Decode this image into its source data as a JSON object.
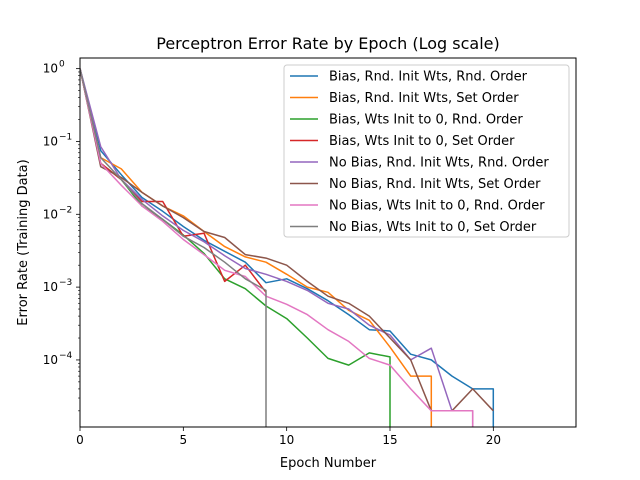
{
  "chart_data": {
    "type": "line",
    "title": "Perceptron Error Rate by Epoch (Log scale)",
    "xlabel": "Epoch Number",
    "ylabel": "Error Rate (Training Data)",
    "xlim": [
      0,
      24
    ],
    "ylim": [
      1.2e-05,
      1.4
    ],
    "yscale": "log",
    "x_ticks": [
      0,
      5,
      10,
      15,
      20
    ],
    "y_ticks": [
      {
        "value": 1,
        "label": "10^0"
      },
      {
        "value": 0.1,
        "label": "10^-1"
      },
      {
        "value": 0.01,
        "label": "10^-2"
      },
      {
        "value": 0.001,
        "label": "10^-3"
      },
      {
        "value": 0.0001,
        "label": "10^-4"
      }
    ],
    "grid": false,
    "legend_position": "top-right",
    "series": [
      {
        "name": "Bias, Rnd. Init Wts, Rnd. Order",
        "color": "#1f77b4",
        "x": [
          0,
          1,
          2,
          3,
          4,
          5,
          6,
          7,
          8,
          9,
          10,
          11,
          12,
          13,
          14,
          15,
          16,
          17,
          18,
          19,
          20,
          20
        ],
        "y": [
          1.0,
          0.075,
          0.035,
          0.017,
          0.011,
          0.0068,
          0.0044,
          0.0031,
          0.0022,
          0.00115,
          0.0013,
          0.00095,
          0.00065,
          0.00042,
          0.00026,
          0.00025,
          0.00012,
          0.0001,
          6e-05,
          4e-05,
          4e-05,
          null
        ]
      },
      {
        "name": "Bias, Rnd. Init Wts, Set Order",
        "color": "#ff7f0e",
        "x": [
          0,
          1,
          2,
          3,
          4,
          5,
          6,
          7,
          8,
          9,
          10,
          11,
          12,
          13,
          14,
          15,
          16,
          17,
          17
        ],
        "y": [
          1.0,
          0.06,
          0.042,
          0.02,
          0.013,
          0.0095,
          0.0058,
          0.0036,
          0.0026,
          0.0022,
          0.0015,
          0.001,
          0.00085,
          0.00048,
          0.00035,
          0.00015,
          6e-05,
          6e-05,
          null
        ]
      },
      {
        "name": "Bias, Wts Init to 0, Rnd. Order",
        "color": "#2ca02c",
        "x": [
          0,
          1,
          2,
          3,
          4,
          5,
          6,
          7,
          8,
          9,
          10,
          11,
          12,
          13,
          14,
          15,
          15
        ],
        "y": [
          1.0,
          0.05,
          0.03,
          0.013,
          0.0085,
          0.0052,
          0.0029,
          0.0013,
          0.00095,
          0.00055,
          0.00037,
          0.0002,
          0.000105,
          8.5e-05,
          0.000125,
          0.00011,
          null
        ]
      },
      {
        "name": "Bias, Wts Init to 0, Set Order",
        "color": "#d62728",
        "x": [
          0,
          1,
          2,
          3,
          4,
          5,
          6,
          7,
          8,
          9
        ],
        "y": [
          1.0,
          0.05,
          0.03,
          0.015,
          0.015,
          0.005,
          0.0055,
          0.0012,
          0.002,
          0.00085
        ]
      },
      {
        "name": "No Bias, Rnd. Init Wts, Rnd. Order",
        "color": "#9467bd",
        "x": [
          0,
          1,
          2,
          3,
          4,
          5,
          6,
          7,
          8,
          9,
          10,
          11,
          12,
          13,
          14,
          15,
          16,
          17,
          18,
          19,
          19
        ],
        "y": [
          1.0,
          0.085,
          0.03,
          0.016,
          0.0095,
          0.006,
          0.0042,
          0.0027,
          0.0018,
          0.0015,
          0.0012,
          0.0009,
          0.0006,
          0.0005,
          0.0003,
          0.00022,
          0.0001,
          0.000145,
          2e-05,
          2e-05,
          null
        ]
      },
      {
        "name": "No Bias, Rnd. Init Wts, Set Order",
        "color": "#8c564b",
        "x": [
          0,
          1,
          2,
          3,
          4,
          5,
          6,
          7,
          8,
          9,
          10,
          11,
          12,
          13,
          14,
          15,
          16,
          17,
          18,
          19,
          20
        ],
        "y": [
          1.0,
          0.045,
          0.032,
          0.02,
          0.013,
          0.009,
          0.0058,
          0.0048,
          0.0028,
          0.0025,
          0.002,
          0.0012,
          0.00075,
          0.0006,
          0.0004,
          0.0002,
          0.0001,
          2e-05,
          2e-05,
          4e-05,
          2e-05
        ]
      },
      {
        "name": "No Bias, Wts Init to 0, Rnd. Order",
        "color": "#e377c2",
        "x": [
          0,
          1,
          2,
          3,
          4,
          5,
          6,
          7,
          8,
          9,
          10,
          11,
          12,
          13,
          14,
          15,
          16,
          17,
          18,
          19,
          19
        ],
        "y": [
          1.0,
          0.05,
          0.025,
          0.013,
          0.008,
          0.0045,
          0.0028,
          0.0017,
          0.0014,
          0.00075,
          0.00058,
          0.00042,
          0.00026,
          0.00018,
          0.000105,
          8.5e-05,
          4e-05,
          2e-05,
          2e-05,
          2e-05,
          null
        ]
      },
      {
        "name": "No Bias, Wts Init to 0, Set Order",
        "color": "#7f7f7f",
        "x": [
          0,
          1,
          2,
          3,
          4,
          5,
          6,
          7,
          8,
          9,
          9
        ],
        "y": [
          1.0,
          0.06,
          0.03,
          0.014,
          0.0085,
          0.005,
          0.0035,
          0.0022,
          0.0013,
          0.0009,
          null
        ]
      }
    ]
  }
}
